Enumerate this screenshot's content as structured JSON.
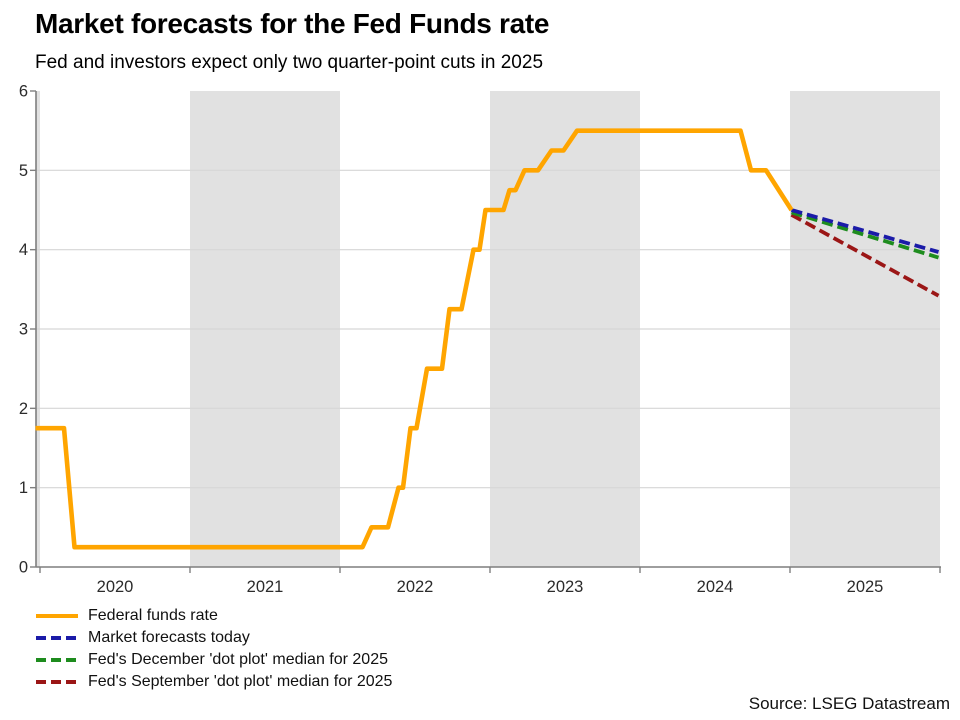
{
  "header": {
    "title": "Market forecasts for the Fed Funds rate",
    "subtitle": "Fed and investors expect only two quarter-point cuts in 2025"
  },
  "source": "Source: LSEG Datastream",
  "colors": {
    "band": "#E1E1E1",
    "grid": "#D6D6D6",
    "axis": "#7F7F7F",
    "tick_text": "#2B2B2B",
    "orange": "#FFA500",
    "navy": "#1B1BA8",
    "green": "#1E8C1E",
    "dark_red": "#9B1616"
  },
  "chart_data": {
    "type": "line",
    "title": "Market forecasts for the Fed Funds rate",
    "subtitle": "Fed and investors expect only two quarter-point cuts in 2025",
    "xlabel": "",
    "ylabel": "",
    "ylim": [
      0,
      6
    ],
    "xlim": [
      2019.97,
      2026.0
    ],
    "y_ticks": [
      0,
      1,
      2,
      3,
      4,
      5,
      6
    ],
    "x_axis_tick_years": [
      2020,
      2021,
      2022,
      2023,
      2024,
      2025,
      2026
    ],
    "x_ticks": [
      {
        "label": "2020",
        "center_year": 2020.5
      },
      {
        "label": "2021",
        "center_year": 2021.5
      },
      {
        "label": "2022",
        "center_year": 2022.5
      },
      {
        "label": "2023",
        "center_year": 2023.5
      },
      {
        "label": "2024",
        "center_year": 2024.5
      },
      {
        "label": "2025",
        "center_year": 2025.5
      }
    ],
    "shaded_year_bands": [
      [
        2019.97,
        2020.0
      ],
      [
        2021.0,
        2022.0
      ],
      [
        2023.0,
        2024.0
      ],
      [
        2025.0,
        2026.0
      ]
    ],
    "grid": "horizontal",
    "legend_position": "bottom-left",
    "series": [
      {
        "name": "Federal funds rate",
        "color": "#FFA500",
        "style": "solid",
        "points": [
          [
            2019.97,
            1.75
          ],
          [
            2020.16,
            1.75
          ],
          [
            2020.23,
            0.25
          ],
          [
            2022.15,
            0.25
          ],
          [
            2022.21,
            0.5
          ],
          [
            2022.32,
            0.5
          ],
          [
            2022.39,
            1.0
          ],
          [
            2022.42,
            1.0
          ],
          [
            2022.47,
            1.75
          ],
          [
            2022.51,
            1.75
          ],
          [
            2022.58,
            2.5
          ],
          [
            2022.68,
            2.5
          ],
          [
            2022.73,
            3.25
          ],
          [
            2022.81,
            3.25
          ],
          [
            2022.89,
            4.0
          ],
          [
            2022.93,
            4.0
          ],
          [
            2022.97,
            4.5
          ],
          [
            2023.09,
            4.5
          ],
          [
            2023.13,
            4.75
          ],
          [
            2023.17,
            4.75
          ],
          [
            2023.23,
            5.0
          ],
          [
            2023.32,
            5.0
          ],
          [
            2023.41,
            5.25
          ],
          [
            2023.49,
            5.25
          ],
          [
            2023.58,
            5.5
          ],
          [
            2024.67,
            5.5
          ],
          [
            2024.74,
            5.0
          ],
          [
            2024.84,
            5.0
          ],
          [
            2025.01,
            4.5
          ]
        ]
      },
      {
        "name": "Market forecasts today",
        "color": "#1B1BA8",
        "style": "dashed",
        "points": [
          [
            2025.01,
            4.5
          ],
          [
            2025.99,
            3.97
          ]
        ]
      },
      {
        "name": "Fed's December 'dot plot' median for 2025",
        "color": "#1E8C1E",
        "style": "dashed",
        "points": [
          [
            2025.01,
            4.47
          ],
          [
            2025.99,
            3.9
          ]
        ]
      },
      {
        "name": "Fed's September 'dot plot' median for 2025",
        "color": "#9B1616",
        "style": "dashed",
        "points": [
          [
            2025.01,
            4.44
          ],
          [
            2025.99,
            3.42
          ]
        ]
      }
    ]
  }
}
